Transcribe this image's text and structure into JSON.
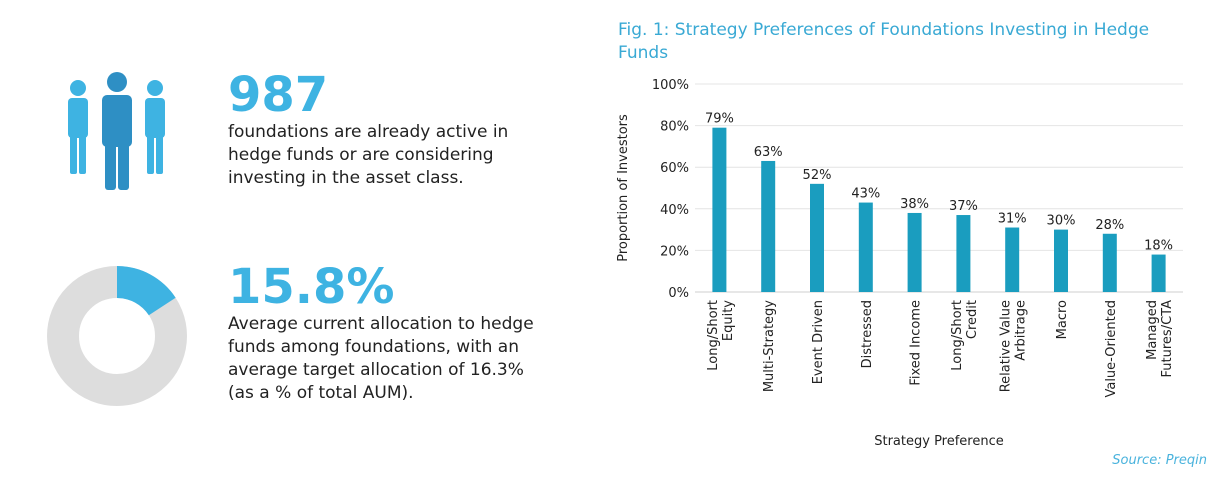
{
  "stats": [
    {
      "value": "987",
      "text": [
        "foundations are already active in",
        "hedge funds or are considering",
        "investing in the asset class."
      ],
      "icon": "people-icon"
    },
    {
      "value": "15.8%",
      "text": [
        "Average current allocation to hedge",
        "funds among foundations, with an",
        "average target allocation of 16.3%",
        "(as a % of total AUM)."
      ],
      "icon": "donut-chart-icon",
      "donut_fraction": 0.158
    }
  ],
  "colors": {
    "accent": "#3eb3e2",
    "bar": "#1a9dbf",
    "donut_rest": "#dddddd",
    "title": "#39a9d4"
  },
  "chart_data": {
    "type": "bar",
    "title": "Fig. 1: Strategy Preferences of Foundations Investing in Hedge Funds",
    "title_lines": [
      "Fig. 1: Strategy Preferences of Foundations Investing in Hedge",
      "Funds"
    ],
    "xlabel": "Strategy Preference",
    "ylabel": "Proportion of Investors",
    "ylim": [
      0,
      100
    ],
    "yticks": [
      "0%",
      "20%",
      "40%",
      "60%",
      "80%",
      "100%"
    ],
    "categories": [
      [
        "Long/Short",
        "Equity"
      ],
      [
        "Multi-Strategy"
      ],
      [
        "Event Driven"
      ],
      [
        "Distressed"
      ],
      [
        "Fixed Income"
      ],
      [
        "Long/Short",
        "Credit"
      ],
      [
        "Relative Value",
        "Arbitrage"
      ],
      [
        "Macro"
      ],
      [
        "Value-Oriented"
      ],
      [
        "Managed",
        "Futures/CTA"
      ]
    ],
    "values": [
      79,
      63,
      52,
      43,
      38,
      37,
      31,
      30,
      28,
      18
    ],
    "value_labels": [
      "79%",
      "63%",
      "52%",
      "43%",
      "38%",
      "37%",
      "31%",
      "30%",
      "28%",
      "18%"
    ],
    "grid": true,
    "source": "Source: Preqin"
  }
}
